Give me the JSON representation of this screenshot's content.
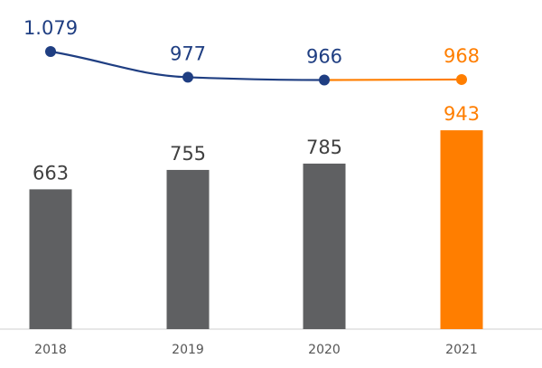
{
  "chart_data": {
    "type": "bar",
    "categories": [
      "2018",
      "2019",
      "2020",
      "2021"
    ],
    "bars": {
      "values": [
        663,
        755,
        785,
        943
      ],
      "value_labels": [
        "663",
        "755",
        "785",
        "943"
      ]
    },
    "line": {
      "values": [
        1079,
        977,
        966,
        968
      ],
      "value_labels": [
        "1.079",
        "977",
        "966",
        "968"
      ]
    },
    "title": "",
    "xlabel": "",
    "ylabel": "",
    "bar_ylim": [
      0,
      1000
    ],
    "line_ylim": [
      940,
      1085
    ],
    "grid": false,
    "colors": {
      "bar": "#5f6062",
      "bar_highlight": "#ff7e00",
      "line": "#1f3e82",
      "line_highlight": "#ff7e00",
      "label_bar": "#404040",
      "label_line": "#1f3e82",
      "label_highlight": "#ff7e00",
      "axis": "#cfcfcf",
      "tick": "#555555"
    },
    "highlight_index": 3
  }
}
